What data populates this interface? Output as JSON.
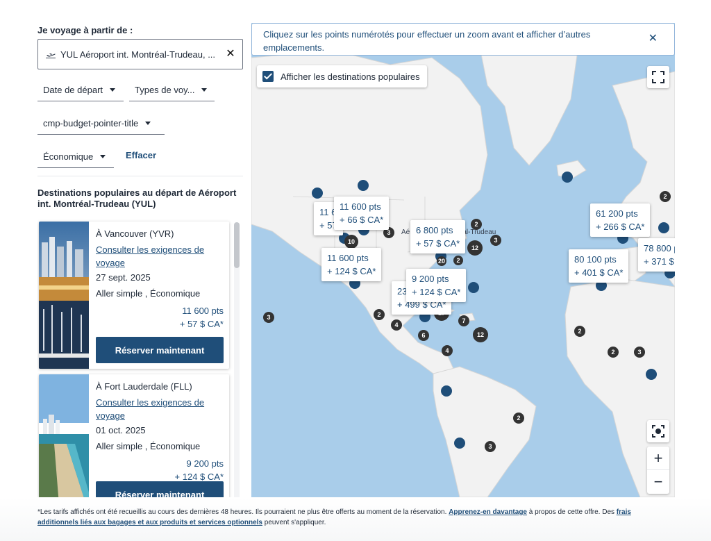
{
  "search": {
    "from_label": "Je voyage à partir de :",
    "origin_value": "YUL Aéroport int. Montréal-Trudeau, ...",
    "departure_date_label": "Date de départ",
    "trip_type_label": "Types de voy...",
    "budget_label": "cmp-budget-pointer-title",
    "cabin_label": "Économique",
    "clear_label": "Effacer"
  },
  "popular": {
    "title": "Destinations populaires au départ de Aéroport int. Montréal-Trudeau (YUL)",
    "cards": [
      {
        "destination": "À Vancouver (YVR)",
        "requirements_link": "Consulter les exigences de voyage",
        "date": "27 sept. 2025",
        "trip": "Aller simple , Économique",
        "points": "11 600 pts",
        "cash": "+ 57 $ CA*",
        "book_label": "Réserver maintenant"
      },
      {
        "destination": "À Fort Lauderdale (FLL)",
        "requirements_link": "Consulter les exigences de voyage",
        "date": "01 oct. 2025",
        "trip": "Aller simple , Économique",
        "points": "9 200 pts",
        "cash": "+ 124 $ CA*",
        "book_label": "Réserver maintenant"
      }
    ]
  },
  "map": {
    "notice": "Cliquez sur les points numérotés pour effectuer un zoom avant et afficher d’autres emplacements.",
    "toggle_label": "Afficher les destinations populaires",
    "origin_city_label": "Aéroport int. Montréal-Trudeau",
    "zoom_in": "+",
    "zoom_out": "−",
    "price_labels": [
      {
        "pts": "11 6",
        "cash": "+ 57"
      },
      {
        "pts": "11 600 pts",
        "cash": "+ 66 $ CA*"
      },
      {
        "pts": "6 800 pts",
        "cash": "+ 57 $ CA*"
      },
      {
        "pts": "11 600 pts",
        "cash": "+ 124 $ CA*"
      },
      {
        "pts": "23",
        "cash": "+ 499 $ CA*"
      },
      {
        "pts": "9 200 pts",
        "cash": "+ 124 $ CA*"
      },
      {
        "pts": "61 200 pts",
        "cash": "+ 266 $ CA*"
      },
      {
        "pts": "80 100 pts",
        "cash": "+ 401 $ CA*"
      },
      {
        "pts": "78 800 p",
        "cash": "+ 371 $"
      }
    ],
    "clusters": [
      "2",
      "3",
      "10",
      "2",
      "3",
      "12",
      "3",
      "2",
      "4",
      "6",
      "17",
      "7",
      "12",
      "4",
      "2",
      "3",
      "2",
      "2",
      "3",
      "2",
      "20"
    ]
  },
  "footer": {
    "text1": "*Les tarifs affichés ont été recueillis au cours des dernières 48 heures. Ils pourraient ne plus être offerts au moment de la réservation.",
    "link1": "Apprenez-en davantage",
    "text2": "à propos de cette offre. Des",
    "link2": "frais additionnels liés aux bagages et aux produits et services optionnels",
    "text3": "peuvent s'appliquer."
  },
  "colors": {
    "brand_navy": "#1f4e79",
    "water": "#a9cdea",
    "land": "#f2f2f2"
  }
}
